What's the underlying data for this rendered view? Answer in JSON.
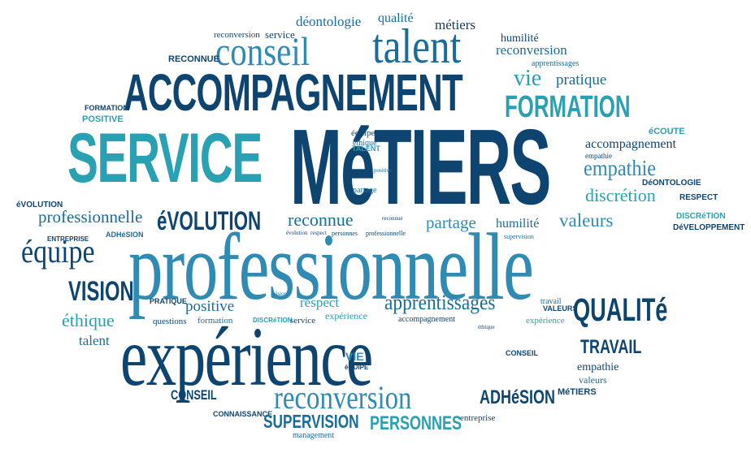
{
  "colors": {
    "navy": "#0d4570",
    "blue": "#1a6d9a",
    "teal": "#2aa0b3",
    "mid_blue": "#2f8bb4",
    "dark": "#163a5c",
    "background": "#ffffff"
  },
  "words": [
    "déontologie",
    "qualité",
    "métiers",
    "reconversion",
    "service",
    "humilité",
    "conseil",
    "talent",
    "reconversion",
    "RECONNUE",
    "apprentissages",
    "vie",
    "pratique",
    "ACCOMPAGNEMENT",
    "FORMATION",
    "FORMATION",
    "POSITIVE",
    "SERVICE",
    "MéTIERS",
    "équipe",
    "éthique",
    "TALENT",
    "éCOUTE",
    "accompagnement",
    "empathie",
    "empathie",
    "DéONTOLOGIE",
    "discrétion",
    "RESPECT",
    "partage",
    "éVOLUTION",
    "professionnelle",
    "éVOLUTION",
    "reconnue",
    "partage",
    "humilité",
    "valeurs",
    "DISCRéTION",
    "DéVELOPPEMENT",
    "ENTREPRISE",
    "ADHéSION",
    "équipe",
    "professionnelle",
    "VISION",
    "PRATIQUE",
    "positive",
    "respect",
    "apprentissages",
    "QUALITé",
    "éthique",
    "questions",
    "formation",
    "DISCRéTION",
    "service",
    "expérience",
    "accompagnement",
    "expérience",
    "talent",
    "travail",
    "VALEURS",
    "TRAVAIL",
    "VIE",
    "éQUIPE",
    "CONSEIL",
    "empathie",
    "valeurs",
    "CONSEIL",
    "reconversion",
    "ADHéSION",
    "MéTIERS",
    "CONNAISSANCE",
    "SUPERVISION",
    "PERSONNES",
    "entreprise",
    "management",
    "positive",
    "éthique",
    "supervision",
    "vision",
    "personnes",
    "professionnelle",
    "reconnue",
    "évolution",
    "respect"
  ]
}
